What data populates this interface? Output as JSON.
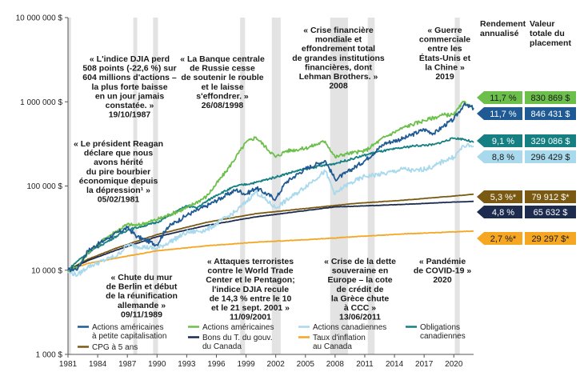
{
  "chart_data": {
    "type": "line",
    "y_scale": "log",
    "ylim": [
      1000,
      10000000
    ],
    "xlim": [
      1981,
      2022
    ],
    "y_ticks": [
      {
        "value": 10000000,
        "label": "10 000 000 $"
      },
      {
        "value": 1000000,
        "label": "1 000 000 $"
      },
      {
        "value": 100000,
        "label": "100 000 $"
      },
      {
        "value": 10000,
        "label": "10 000 $"
      },
      {
        "value": 1000,
        "label": "1 000 $"
      }
    ],
    "x_ticks": [
      1981,
      1984,
      1987,
      1990,
      1993,
      1996,
      1999,
      2002,
      2005,
      2008,
      2011,
      2014,
      2017,
      2020
    ],
    "shaded_periods": [
      [
        1981.0,
        1981.3
      ],
      [
        1987.6,
        1988.0
      ],
      [
        1989.6,
        1990.1
      ],
      [
        1998.4,
        1998.9
      ],
      [
        2001.6,
        2002.5
      ],
      [
        2007.5,
        2009.3
      ],
      [
        2011.3,
        2012.0
      ],
      [
        2020.1,
        2020.6
      ]
    ],
    "series": [
      {
        "name": "Actions américaines à petite capitalisation",
        "color": "#1f5a94",
        "x": [
          1981,
          1982,
          1983,
          1985,
          1987,
          1988,
          1990,
          1991,
          1993,
          1995,
          1998,
          1999,
          2000,
          2002,
          2003,
          2005,
          2007,
          2008,
          2009,
          2011,
          2013,
          2015,
          2017,
          2018,
          2019,
          2020,
          2021,
          2022
        ],
        "y": [
          10000,
          10500,
          17000,
          24000,
          32000,
          25000,
          20000,
          32000,
          45000,
          58000,
          90000,
          80000,
          95000,
          70000,
          110000,
          160000,
          200000,
          120000,
          140000,
          200000,
          320000,
          370000,
          470000,
          420000,
          520000,
          620000,
          920000,
          846431
        ]
      },
      {
        "name": "Actions américaines",
        "color": "#6cbf4a",
        "x": [
          1981,
          1982,
          1983,
          1985,
          1987,
          1988,
          1990,
          1993,
          1995,
          1997,
          1999,
          2000,
          2002,
          2003,
          2005,
          2007,
          2008,
          2009,
          2011,
          2013,
          2015,
          2017,
          2019,
          2020,
          2021,
          2022
        ],
        "y": [
          10000,
          11000,
          16000,
          25000,
          35000,
          34000,
          40000,
          55000,
          75000,
          150000,
          330000,
          380000,
          220000,
          260000,
          280000,
          340000,
          220000,
          240000,
          260000,
          380000,
          500000,
          600000,
          700000,
          700000,
          1000000,
          830869
        ]
      },
      {
        "name": "Actions canadiennes",
        "color": "#a9d9ec",
        "x": [
          1981,
          1982,
          1983,
          1986,
          1987,
          1990,
          1993,
          1995,
          1998,
          2000,
          2002,
          2004,
          2007,
          2008,
          2009,
          2011,
          2013,
          2015,
          2016,
          2018,
          2019,
          2020,
          2021,
          2022
        ],
        "y": [
          9500,
          8800,
          11000,
          15000,
          20000,
          18000,
          28000,
          30000,
          50000,
          85000,
          55000,
          80000,
          150000,
          80000,
          100000,
          130000,
          140000,
          160000,
          150000,
          170000,
          200000,
          220000,
          300000,
          296429
        ]
      },
      {
        "name": "Obligations canadiennes",
        "color": "#157f82",
        "x": [
          1981,
          1982,
          1983,
          1985,
          1987,
          1990,
          1993,
          1994,
          1996,
          1998,
          2000,
          2002,
          2004,
          2006,
          2008,
          2010,
          2012,
          2014,
          2016,
          2018,
          2020,
          2021,
          2022
        ],
        "y": [
          10000,
          13000,
          16000,
          22000,
          30000,
          37000,
          58000,
          55000,
          78000,
          100000,
          110000,
          128000,
          150000,
          168000,
          185000,
          215000,
          250000,
          275000,
          300000,
          310000,
          370000,
          360000,
          329086
        ]
      },
      {
        "name": "CPG à 5 ans",
        "color": "#7a5a12",
        "x": [
          1981,
          1983,
          1986,
          1990,
          1995,
          2000,
          2005,
          2010,
          2015,
          2020,
          2022
        ],
        "y": [
          10000,
          13500,
          18500,
          26500,
          37000,
          47000,
          54000,
          62000,
          68000,
          76000,
          79912
        ]
      },
      {
        "name": "Bons du T. du gouv. du Canada",
        "color": "#1c2b4e",
        "x": [
          1981,
          1983,
          1986,
          1990,
          1995,
          2000,
          2005,
          2008,
          2010,
          2015,
          2020,
          2022
        ],
        "y": [
          10000,
          13000,
          17500,
          25000,
          34000,
          43000,
          51000,
          56500,
          57500,
          60500,
          64500,
          65632
        ]
      },
      {
        "name": "Taux d'inflation au Canada",
        "color": "#f5a623",
        "x": [
          1981,
          1983,
          1986,
          1990,
          1995,
          2000,
          2005,
          2010,
          2015,
          2020,
          2021,
          2022
        ],
        "y": [
          10000,
          12000,
          14000,
          17000,
          19500,
          21500,
          23000,
          25000,
          27000,
          28500,
          28800,
          29297
        ]
      }
    ],
    "annotations": [
      {
        "lines": [
          "« Le président Reagan",
          "déclare que nous",
          "avons hérité",
          "du pire bourbier",
          "économique depuis",
          "la dépression¹ »",
          "05/02/1981"
        ]
      },
      {
        "lines": [
          "« L'indice DJIA perd",
          "508 points (-22,6 %) sur",
          "604 millions d'actions –",
          "la plus forte baisse",
          "en un jour jamais",
          "constatée. »",
          "19/10/1987"
        ]
      },
      {
        "lines": [
          "« La Banque centrale",
          "de Russie cesse",
          "de soutenir le rouble",
          "et le laisse",
          "s'effondrer. »",
          "26/08/1998"
        ]
      },
      {
        "lines": [
          "« Crise financière",
          "mondiale et",
          "effondrement total",
          "de grandes institutions",
          "financières, dont",
          "Lehman Brothers. »",
          "2008"
        ]
      },
      {
        "lines": [
          "« Guerre",
          "commerciale",
          "entre les",
          "États-Unis et",
          "la Chine »",
          "2019"
        ]
      },
      {
        "lines": [
          "« Chute du mur",
          "de Berlin  et  début",
          "de la réunification",
          "allemande »",
          "09/11/1989"
        ]
      },
      {
        "lines": [
          "« Attaques terroristes",
          "contre le World Trade",
          "Center et le Pentagon;",
          "l'indice DJIA recule",
          "de 14,3 % entre le 10",
          "et le 21 sept. 2001 »",
          "11/09/2001"
        ]
      },
      {
        "lines": [
          "« Crise de la dette",
          "souveraine en",
          "Europe – la cote",
          "de crédit de",
          "la Grèce chute",
          "à CCC »",
          "13/06/2011"
        ]
      },
      {
        "lines": [
          "« Pandémie",
          "de COVID-19 »",
          "2020"
        ]
      }
    ],
    "legend": [
      {
        "label_lines": [
          "Actions américaines",
          "à petite capitalisation"
        ],
        "color": "#1f5a94"
      },
      {
        "label_lines": [
          "Actions américaines"
        ],
        "color": "#6cbf4a"
      },
      {
        "label_lines": [
          "Actions canadiennes"
        ],
        "color": "#a9d9ec"
      },
      {
        "label_lines": [
          "Obligations",
          "canadiennes"
        ],
        "color": "#157f82"
      },
      {
        "label_lines": [
          "CPG à 5 ans"
        ],
        "color": "#7a5a12"
      },
      {
        "label_lines": [
          "Bons du T. du gouv.",
          "du Canada"
        ],
        "color": "#1c2b4e"
      },
      {
        "label_lines": [
          "Taux d'inflation",
          "au Canada"
        ],
        "color": "#f5a623"
      }
    ],
    "column_headers": {
      "rate": [
        "Rendement",
        "annualisé"
      ],
      "value": [
        "Valeur",
        "totale du",
        "placement"
      ]
    },
    "results": [
      {
        "rate": "11,7 %",
        "value": "830 869 $",
        "color": "#6cbf4a",
        "text_color": "#1a1a1a"
      },
      {
        "rate": "11,7 %",
        "value": "846 431 $",
        "color": "#1f5a94",
        "text_color": "#ffffff"
      },
      {
        "rate": "9,1 %",
        "value": "329 086 $",
        "color": "#157f82",
        "text_color": "#ffffff"
      },
      {
        "rate": "8,8 %",
        "value": "296 429 $",
        "color": "#a9d9ec",
        "text_color": "#1a1a1a"
      },
      {
        "rate": "5,3 %*",
        "value": "79 912 $*",
        "color": "#7a5a12",
        "text_color": "#ffffff"
      },
      {
        "rate": "4,8 %",
        "value": "65 632 $",
        "color": "#1c2b4e",
        "text_color": "#ffffff"
      },
      {
        "rate": "2,7 %*",
        "value": "29 297 $*",
        "color": "#f5a623",
        "text_color": "#1a1a1a"
      }
    ]
  }
}
